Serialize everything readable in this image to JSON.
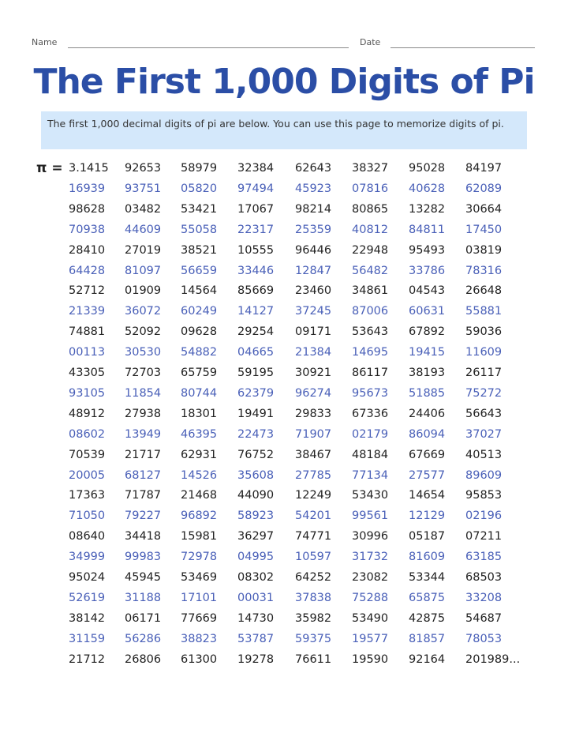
{
  "header": {
    "name_label": "Name",
    "date_label": "Date"
  },
  "title": "The First 1,000 Digits of Pi",
  "intro": "The first 1,000 decimal digits of pi are below. You can use this page to memorize digits of pi.",
  "pi_prefix": "π =",
  "colors": {
    "title": "#2b4ea6",
    "intro_bg": "#d4e8fb",
    "odd_rows": "#222222",
    "even_rows": "#4a60b8"
  },
  "rows": [
    [
      "3.1415",
      "92653",
      "58979",
      "32384",
      "62643",
      "38327",
      "95028",
      "84197"
    ],
    [
      "16939",
      "93751",
      "05820",
      "97494",
      "45923",
      "07816",
      "40628",
      "62089"
    ],
    [
      "98628",
      "03482",
      "53421",
      "17067",
      "98214",
      "80865",
      "13282",
      "30664"
    ],
    [
      "70938",
      "44609",
      "55058",
      "22317",
      "25359",
      "40812",
      "84811",
      "17450"
    ],
    [
      "28410",
      "27019",
      "38521",
      "10555",
      "96446",
      "22948",
      "95493",
      "03819"
    ],
    [
      "64428",
      "81097",
      "56659",
      "33446",
      "12847",
      "56482",
      "33786",
      "78316"
    ],
    [
      "52712",
      "01909",
      "14564",
      "85669",
      "23460",
      "34861",
      "04543",
      "26648"
    ],
    [
      "21339",
      "36072",
      "60249",
      "14127",
      "37245",
      "87006",
      "60631",
      "55881"
    ],
    [
      "74881",
      "52092",
      "09628",
      "29254",
      "09171",
      "53643",
      "67892",
      "59036"
    ],
    [
      "00113",
      "30530",
      "54882",
      "04665",
      "21384",
      "14695",
      "19415",
      "11609"
    ],
    [
      "43305",
      "72703",
      "65759",
      "59195",
      "30921",
      "86117",
      "38193",
      "26117"
    ],
    [
      "93105",
      "11854",
      "80744",
      "62379",
      "96274",
      "95673",
      "51885",
      "75272"
    ],
    [
      "48912",
      "27938",
      "18301",
      "19491",
      "29833",
      "67336",
      "24406",
      "56643"
    ],
    [
      "08602",
      "13949",
      "46395",
      "22473",
      "71907",
      "02179",
      "86094",
      "37027"
    ],
    [
      "70539",
      "21717",
      "62931",
      "76752",
      "38467",
      "48184",
      "67669",
      "40513"
    ],
    [
      "20005",
      "68127",
      "14526",
      "35608",
      "27785",
      "77134",
      "27577",
      "89609"
    ],
    [
      "17363",
      "71787",
      "21468",
      "44090",
      "12249",
      "53430",
      "14654",
      "95853"
    ],
    [
      "71050",
      "79227",
      "96892",
      "58923",
      "54201",
      "99561",
      "12129",
      "02196"
    ],
    [
      "08640",
      "34418",
      "15981",
      "36297",
      "74771",
      "30996",
      "05187",
      "07211"
    ],
    [
      "34999",
      "99983",
      "72978",
      "04995",
      "10597",
      "31732",
      "81609",
      "63185"
    ],
    [
      "95024",
      "45945",
      "53469",
      "08302",
      "64252",
      "23082",
      "53344",
      "68503"
    ],
    [
      "52619",
      "31188",
      "17101",
      "00031",
      "37838",
      "75288",
      "65875",
      "33208"
    ],
    [
      "38142",
      "06171",
      "77669",
      "14730",
      "35982",
      "53490",
      "42875",
      "54687"
    ],
    [
      "31159",
      "56286",
      "38823",
      "53787",
      "59375",
      "19577",
      "81857",
      "78053"
    ],
    [
      "21712",
      "26806",
      "61300",
      "19278",
      "76611",
      "19590",
      "92164",
      "201989..."
    ]
  ]
}
